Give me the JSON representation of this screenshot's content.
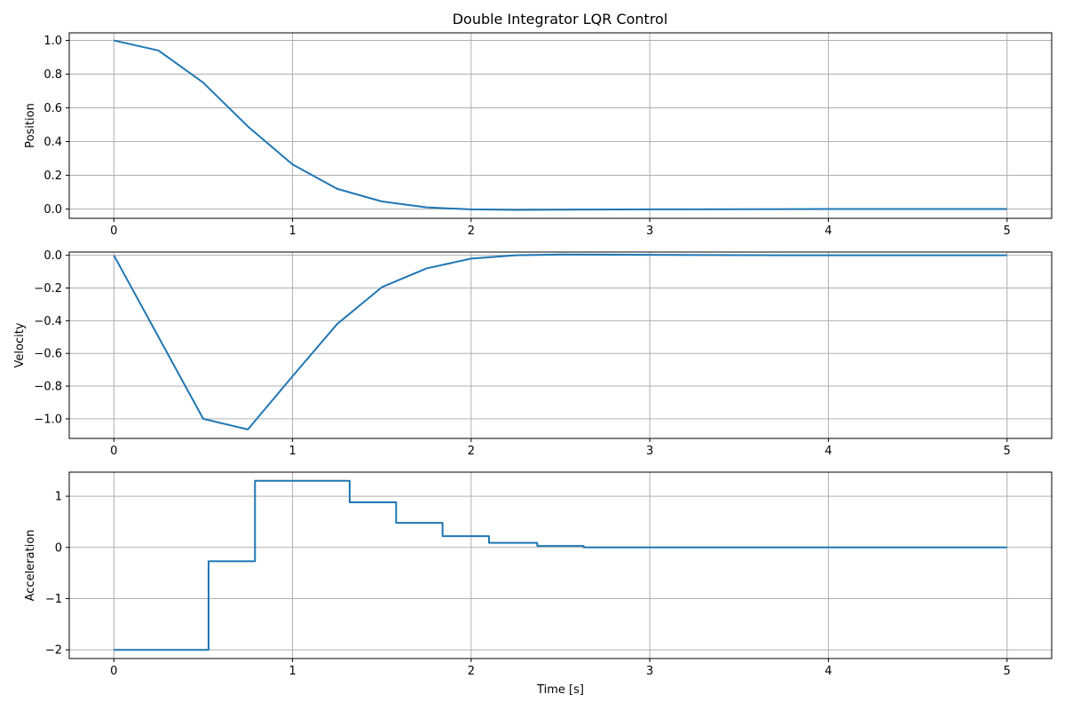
{
  "chart_data": [
    {
      "type": "line",
      "title": "Double Integrator LQR Control",
      "xlabel": "",
      "ylabel": "Position",
      "xlim": [
        -0.25,
        5.25
      ],
      "ylim": [
        -0.055,
        1.045
      ],
      "xticks": [
        0,
        1,
        2,
        3,
        4,
        5
      ],
      "xtick_labels": [
        "0",
        "1",
        "2",
        "3",
        "4",
        "5"
      ],
      "yticks": [
        0.0,
        0.2,
        0.4,
        0.6,
        0.8,
        1.0
      ],
      "ytick_labels": [
        "0.0",
        "0.2",
        "0.4",
        "0.6",
        "0.8",
        "1.0"
      ],
      "grid": true,
      "color": "#1f77b4",
      "step": false,
      "x": [
        0,
        0.25,
        0.5,
        0.75,
        1.0,
        1.25,
        1.5,
        1.75,
        2.0,
        2.25,
        2.5,
        3.0,
        3.5,
        4.0,
        4.5,
        5.0
      ],
      "values": [
        1.0,
        0.94,
        0.75,
        0.49,
        0.265,
        0.12,
        0.045,
        0.01,
        -0.002,
        -0.005,
        -0.004,
        -0.002,
        -0.001,
        0.0,
        0.0,
        0.0
      ]
    },
    {
      "type": "line",
      "title": "",
      "xlabel": "",
      "ylabel": "Velocity",
      "xlim": [
        -0.25,
        5.25
      ],
      "ylim": [
        -1.12,
        0.02
      ],
      "xticks": [
        0,
        1,
        2,
        3,
        4,
        5
      ],
      "xtick_labels": [
        "0",
        "1",
        "2",
        "3",
        "4",
        "5"
      ],
      "yticks": [
        0.0,
        -0.2,
        -0.4,
        -0.6,
        -0.8,
        -1.0
      ],
      "ytick_labels": [
        "0.0",
        "−0.2",
        "−0.4",
        "−0.6",
        "−0.8",
        "−1.0"
      ],
      "grid": true,
      "color": "#1f77b4",
      "step": false,
      "x": [
        0,
        0.25,
        0.5,
        0.75,
        1.0,
        1.25,
        1.5,
        1.75,
        2.0,
        2.25,
        2.5,
        3.0,
        3.5,
        4.0,
        4.5,
        5.0
      ],
      "values": [
        0.0,
        -0.5,
        -1.0,
        -1.065,
        -0.74,
        -0.42,
        -0.195,
        -0.08,
        -0.02,
        0.0,
        0.005,
        0.003,
        0.001,
        0.0,
        0.0,
        0.0
      ]
    },
    {
      "type": "line",
      "title": "",
      "xlabel": "Time [s]",
      "ylabel": "Acceleration",
      "xlim": [
        -0.25,
        5.25
      ],
      "ylim": [
        -2.17,
        1.47
      ],
      "xticks": [
        0,
        1,
        2,
        3,
        4,
        5
      ],
      "xtick_labels": [
        "0",
        "1",
        "2",
        "3",
        "4",
        "5"
      ],
      "yticks": [
        -2,
        -1,
        0,
        1
      ],
      "ytick_labels": [
        "−2",
        "−1",
        "0",
        "1"
      ],
      "grid": true,
      "color": "#1f77b4",
      "step": true,
      "x": [
        0,
        0.53,
        0.79,
        1.32,
        1.58,
        1.84,
        2.1,
        2.37,
        2.63,
        5.0
      ],
      "values": [
        -2.0,
        -0.27,
        1.3,
        0.88,
        0.48,
        0.22,
        0.09,
        0.03,
        0.0,
        0.0
      ]
    }
  ]
}
